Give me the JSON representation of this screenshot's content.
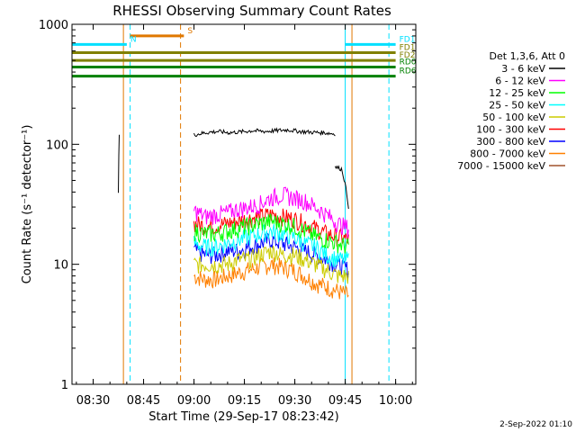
{
  "chart_data": {
    "type": "line",
    "title": "RHESSI Observing Summary Count Rates",
    "xlabel": "Start Time (29-Sep-17 08:23:42)",
    "ylabel": "Count Rate (s⁻¹ detector⁻¹)",
    "yscale": "log",
    "ylim": [
      1,
      1000
    ],
    "x_range_minutes": [
      "08:23:42",
      "10:06"
    ],
    "x_ticks": [
      "08:30",
      "08:45",
      "09:00",
      "09:15",
      "09:30",
      "09:45",
      "10:00"
    ],
    "y_ticks": [
      "1",
      "10",
      "100",
      "1000"
    ],
    "timestamp": "2-Sep-2022 01:10",
    "legend": {
      "title": "Det 1,3,6, Att 0",
      "placement": "right",
      "entries": [
        {
          "label": "3 - 6 keV",
          "color": "#000000"
        },
        {
          "label": "6 - 12 keV",
          "color": "#ff00ff"
        },
        {
          "label": "12 - 25 keV",
          "color": "#00ff00"
        },
        {
          "label": "25 - 50 keV",
          "color": "#00ffff"
        },
        {
          "label": "50 - 100 keV",
          "color": "#cccc00"
        },
        {
          "label": "100 - 300 keV",
          "color": "#ff0000"
        },
        {
          "label": "300 - 800 keV",
          "color": "#0000ff"
        },
        {
          "label": "800 - 7000 keV",
          "color": "#ff8000"
        },
        {
          "label": "7000 - 15000 keV",
          "color": "#a0522d"
        }
      ]
    },
    "markers": {
      "flags": [
        {
          "label": "S",
          "color": "#e07800",
          "start": "08:41",
          "end": "08:57",
          "value": 800
        },
        {
          "label": "N",
          "color": "#00e0ff",
          "start": "08:23:42",
          "end": "08:40",
          "value": 680
        },
        {
          "label": "FD1",
          "color": "#00e0ff",
          "start": "09:45",
          "end": "10:00",
          "value": 680
        },
        {
          "label": "FD1",
          "color": "#808000",
          "start": "08:23:42",
          "end": "10:00",
          "value": 580
        },
        {
          "label": "FD2",
          "color": "#808000",
          "start": "08:23:42",
          "end": "10:00",
          "value": 500
        },
        {
          "label": "RD0",
          "color": "#008000",
          "start": "08:23:42",
          "end": "10:00",
          "value": 440
        },
        {
          "label": "RD6",
          "color": "#008000",
          "start": "08:23:42",
          "end": "10:00",
          "value": 370
        }
      ],
      "vlines": [
        {
          "time": "08:23:42",
          "color": "#00e0ff",
          "style": "solid"
        },
        {
          "time": "08:39",
          "color": "#e07800",
          "style": "solid"
        },
        {
          "time": "08:41",
          "color": "#00e0ff",
          "style": "dashed"
        },
        {
          "time": "08:56",
          "color": "#e07800",
          "style": "dashed"
        },
        {
          "time": "09:45",
          "color": "#00e0ff",
          "style": "solid"
        },
        {
          "time": "09:47",
          "color": "#e07800",
          "style": "solid"
        },
        {
          "time": "09:58",
          "color": "#00e0ff",
          "style": "dashed"
        }
      ]
    },
    "series": [
      {
        "name": "3 - 6 keV",
        "color": "#000000",
        "segments": [
          {
            "start": "08:37:30",
            "end": "08:37:45",
            "values": [
              40,
              120
            ]
          },
          {
            "start": "09:00",
            "end": "09:42",
            "values": [
              120,
              125,
              128,
              125,
              127,
              130,
              128,
              130,
              132,
              128,
              126,
              125,
              122
            ]
          },
          {
            "start": "09:42",
            "end": "09:46",
            "values": [
              65,
              62,
              30
            ]
          }
        ]
      },
      {
        "name": "6 - 12 keV",
        "color": "#ff00ff",
        "values_start": "09:00",
        "values_end": "09:46",
        "values": [
          28,
          25,
          26,
          27,
          29,
          30,
          32,
          36,
          38,
          36,
          34,
          30,
          26,
          22,
          20
        ]
      },
      {
        "name": "12 - 25 keV",
        "color": "#00ff00",
        "values_start": "09:00",
        "values_end": "09:46",
        "values": [
          19,
          18,
          18,
          19,
          20,
          21,
          22,
          23,
          22,
          21,
          19,
          17,
          16,
          15,
          14
        ]
      },
      {
        "name": "25 - 50 keV",
        "color": "#00ffff",
        "values_start": "09:00",
        "values_end": "09:46",
        "values": [
          15,
          14,
          14,
          15,
          16,
          17,
          18,
          19,
          18,
          17,
          15,
          14,
          12,
          11,
          11
        ]
      },
      {
        "name": "50 - 100 keV",
        "color": "#cccc00",
        "values_start": "09:00",
        "values_end": "09:46",
        "values": [
          10,
          10,
          10,
          10,
          11,
          11,
          12,
          13,
          12,
          12,
          11,
          10,
          9,
          8,
          8
        ]
      },
      {
        "name": "100 - 300 keV",
        "color": "#ff0000",
        "values_start": "09:00",
        "values_end": "09:46",
        "values": [
          22,
          21,
          21,
          22,
          23,
          24,
          25,
          26,
          25,
          24,
          22,
          20,
          18,
          17,
          16
        ]
      },
      {
        "name": "300 - 800 keV",
        "color": "#0000ff",
        "values_start": "09:00",
        "values_end": "09:46",
        "values": [
          13,
          12,
          12,
          13,
          13,
          14,
          15,
          16,
          15,
          14,
          13,
          12,
          11,
          10,
          9
        ]
      },
      {
        "name": "800 - 7000 keV",
        "color": "#ff8000",
        "values_start": "09:00",
        "values_end": "09:46",
        "values": [
          8,
          7.5,
          7.5,
          8,
          8.5,
          9,
          9.5,
          10,
          9.5,
          9,
          8,
          7,
          6.5,
          6,
          5.5
        ]
      }
    ]
  }
}
